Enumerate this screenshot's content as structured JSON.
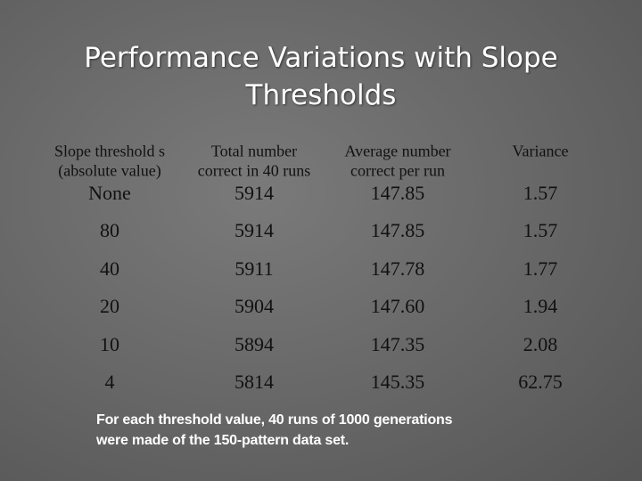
{
  "slide": {
    "title": "Performance Variations with Slope Thresholds",
    "table": {
      "header": [
        [
          "Slope threshold s",
          "(absolute value)"
        ],
        [
          "Total number",
          "correct in 40 runs"
        ],
        [
          "Average number",
          "correct per run"
        ],
        [
          "Variance"
        ]
      ],
      "rows": [
        [
          "None",
          "5914",
          "147.85",
          "1.57"
        ],
        [
          "80",
          "5914",
          "147.85",
          "1.57"
        ],
        [
          "40",
          "5911",
          "147.78",
          "1.77"
        ],
        [
          "20",
          "5904",
          "147.60",
          "1.94"
        ],
        [
          "10",
          "5894",
          "147.35",
          "2.08"
        ],
        [
          "4",
          "5814",
          "145.35",
          "62.75"
        ]
      ]
    },
    "footnote": [
      "For each threshold value, 40 runs of 1000 generations",
      "were made of the 150-pattern data set."
    ]
  }
}
